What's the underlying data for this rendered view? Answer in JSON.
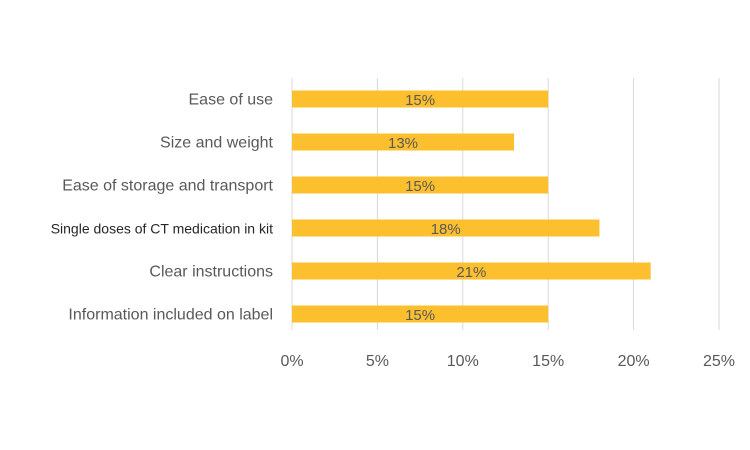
{
  "chart_data": {
    "type": "bar",
    "orientation": "horizontal",
    "title": "",
    "xlabel": "",
    "ylabel": "",
    "categories": [
      "Ease of use",
      "Size and weight",
      "Ease of storage and transport",
      "Single doses of CT medication in kit",
      "Clear instructions",
      "Information included on label"
    ],
    "values": [
      15,
      13,
      15,
      18,
      21,
      15
    ],
    "data_labels": [
      "15%",
      "13%",
      "15%",
      "18%",
      "21%",
      "15%"
    ],
    "xlim": [
      0,
      25
    ],
    "x_ticks": [
      0,
      5,
      10,
      15,
      20,
      25
    ],
    "x_tick_labels": [
      "0%",
      "5%",
      "10%",
      "15%",
      "20%",
      "25%"
    ],
    "grid": "vertical",
    "legend": "none",
    "bar_color": "#fcbf2d"
  }
}
